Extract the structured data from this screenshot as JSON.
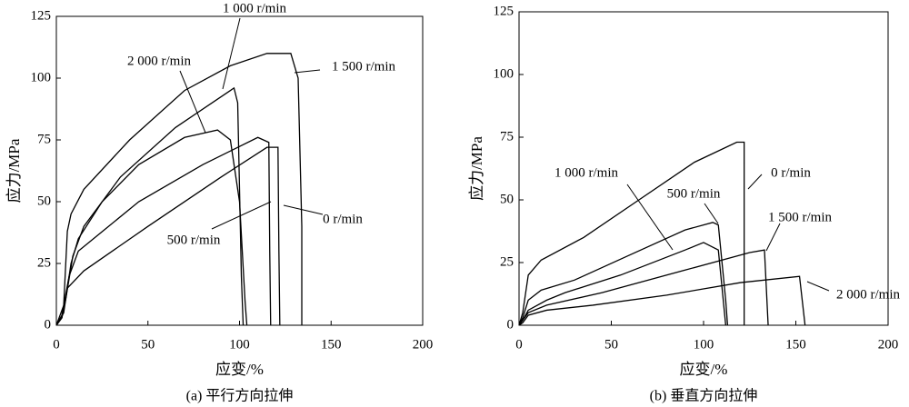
{
  "chart_data": [
    {
      "type": "line",
      "title": "(a) 平行方向拉伸",
      "x_label": "应变/%",
      "y_label": "应力/MPa",
      "xlim": [
        0,
        200
      ],
      "ylim": [
        0,
        125
      ],
      "xticks": [
        0,
        50,
        100,
        150,
        200
      ],
      "yticks": [
        0,
        25,
        50,
        75,
        100,
        125
      ],
      "grid": false,
      "series": [
        {
          "name": "0 r/min",
          "color": "#000000",
          "x": [
            0,
            3,
            6,
            15,
            50,
            90,
            115,
            121,
            121.5,
            122
          ],
          "values": [
            0,
            3,
            15,
            22,
            40,
            60,
            72,
            72,
            30,
            0
          ]
        },
        {
          "name": "500 r/min",
          "color": "#000000",
          "x": [
            0,
            3,
            7,
            12,
            45,
            80,
            110,
            116,
            116.5,
            117
          ],
          "values": [
            0,
            4,
            20,
            30,
            50,
            65,
            76,
            74,
            30,
            0
          ]
        },
        {
          "name": "1 000 r/min",
          "color": "#000000",
          "x": [
            0,
            3,
            5,
            9,
            15,
            35,
            65,
            97,
            99,
            101,
            102
          ],
          "values": [
            0,
            3,
            10,
            28,
            40,
            60,
            80,
            96,
            90,
            20,
            0
          ]
        },
        {
          "name": "1 500 r/min",
          "color": "#000000",
          "x": [
            0,
            4,
            6,
            8,
            15,
            40,
            70,
            95,
            115,
            128,
            132,
            134,
            134
          ],
          "values": [
            0,
            8,
            38,
            45,
            55,
            75,
            95,
            105,
            110,
            110,
            100,
            40,
            0
          ]
        },
        {
          "name": "2 000 r/min",
          "color": "#000000",
          "x": [
            0,
            4,
            8,
            12,
            25,
            45,
            70,
            88,
            95,
            100,
            103,
            104
          ],
          "values": [
            0,
            5,
            25,
            35,
            50,
            65,
            76,
            79,
            75,
            50,
            10,
            0
          ]
        }
      ]
    },
    {
      "type": "line",
      "title": "(b) 垂直方向拉伸",
      "x_label": "应变/%",
      "y_label": "应力/MPa",
      "xlim": [
        0,
        200
      ],
      "ylim": [
        0,
        125
      ],
      "xticks": [
        0,
        50,
        100,
        150,
        200
      ],
      "yticks": [
        0,
        25,
        50,
        75,
        100,
        125
      ],
      "grid": false,
      "series": [
        {
          "name": "0 r/min",
          "color": "#000000",
          "x": [
            0,
            2,
            5,
            12,
            35,
            65,
            95,
            118,
            122,
            122
          ],
          "values": [
            0,
            5,
            20,
            26,
            35,
            50,
            65,
            73,
            73,
            0
          ]
        },
        {
          "name": "500 r/min",
          "color": "#000000",
          "x": [
            0,
            2,
            5,
            12,
            30,
            60,
            90,
            105,
            108,
            112,
            113
          ],
          "values": [
            0,
            3,
            10,
            14,
            18,
            28,
            38,
            41,
            40,
            10,
            0
          ]
        },
        {
          "name": "1 000 r/min",
          "color": "#000000",
          "x": [
            0,
            2,
            5,
            15,
            25,
            55,
            90,
            100,
            108,
            112
          ],
          "values": [
            0,
            2,
            6,
            10,
            13,
            20,
            30,
            33,
            30,
            0
          ]
        },
        {
          "name": "1 500 r/min",
          "color": "#000000",
          "x": [
            0,
            2,
            5,
            15,
            45,
            90,
            125,
            133,
            135
          ],
          "values": [
            0,
            2,
            5,
            8,
            13,
            22,
            29,
            30,
            0
          ]
        },
        {
          "name": "2 000 r/min",
          "color": "#000000",
          "x": [
            0,
            2,
            5,
            15,
            40,
            80,
            120,
            152,
            155
          ],
          "values": [
            0,
            1,
            4,
            6,
            8,
            12,
            17,
            19.5,
            0
          ]
        }
      ]
    }
  ]
}
